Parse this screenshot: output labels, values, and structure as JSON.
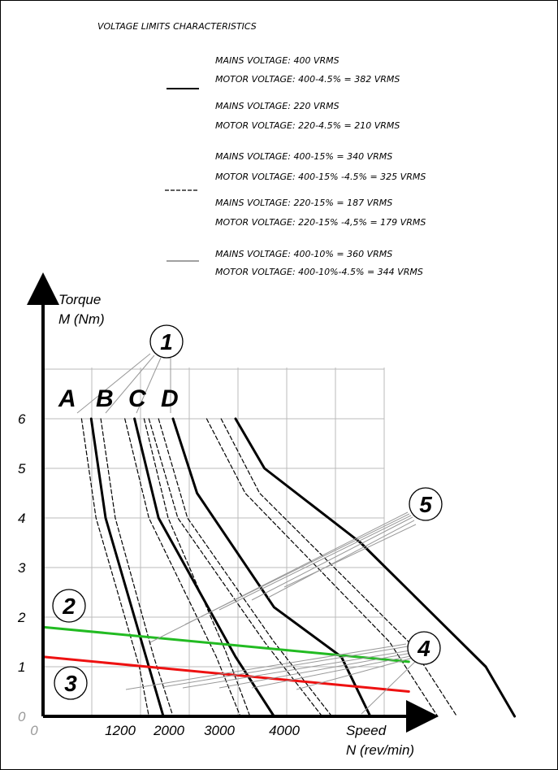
{
  "title": "VOLTAGE LIMITS CHARACTERISTICS",
  "legend": [
    {
      "lines": [
        "MAINS VOLTAGE: 400 VRMS",
        "MOTOR VOLTAGE: 400-4.5% = 382 VRMS"
      ],
      "style": "solid-thick"
    },
    {
      "lines": [
        "MAINS VOLTAGE: 220 VRMS",
        "MOTOR VOLTAGE: 220-4.5% = 210 VRMS"
      ],
      "style": "solid-thick"
    },
    {
      "lines": [
        "MAINS VOLTAGE: 400-15% = 340 VRMS",
        "MOTOR VOLTAGE: 400-15% -4.5% = 325 VRMS"
      ],
      "style": "dashed"
    },
    {
      "lines": [
        "MAINS VOLTAGE: 220-15% = 187 VRMS",
        "MOTOR VOLTAGE: 220-15% -4,5% = 179 VRMS"
      ],
      "style": "dashed"
    },
    {
      "lines": [
        "MAINS VOLTAGE: 400-10% = 360 VRMS",
        "MOTOR VOLTAGE: 400-10%-4.5% = 344 VRMS"
      ],
      "style": "solid-thin"
    }
  ],
  "chart_data": {
    "type": "line",
    "ylabel_line1": "Torque",
    "ylabel_line2": "M (Nm)",
    "xlabel_line1": "Speed",
    "xlabel_line2": "N (rev/min)",
    "y_ticks": [
      "0",
      "1",
      "2",
      "3",
      "4",
      "5",
      "6"
    ],
    "x_ticks": [
      "0",
      "1200",
      "2000",
      "3000",
      "4000"
    ],
    "ylim": [
      0,
      7
    ],
    "xlim": [
      0,
      5000
    ],
    "grid": true,
    "curve_labels": [
      "A",
      "B",
      "C",
      "D"
    ],
    "callouts": [
      "1",
      "2",
      "3",
      "4",
      "5"
    ],
    "colors": {
      "curve": "#000000",
      "line2": "#22bb22",
      "line3": "#ee1111",
      "grid": "#bbbbbb"
    },
    "series": [
      {
        "label": "A",
        "style": "solid",
        "points": [
          [
            500,
            6
          ],
          [
            650,
            4
          ],
          [
            1100,
            1
          ],
          [
            1250,
            0
          ]
        ]
      },
      {
        "label": "A",
        "style": "dashed",
        "points": [
          [
            400,
            6
          ],
          [
            550,
            4
          ],
          [
            1000,
            1
          ],
          [
            1100,
            0
          ]
        ]
      },
      {
        "label": "A",
        "style": "dashed",
        "points": [
          [
            600,
            6
          ],
          [
            750,
            4
          ],
          [
            1150,
            1.2
          ],
          [
            1350,
            0
          ]
        ]
      },
      {
        "label": "B",
        "style": "solid",
        "points": [
          [
            950,
            6
          ],
          [
            1200,
            4
          ],
          [
            2000,
            1.2
          ],
          [
            2400,
            0
          ]
        ]
      },
      {
        "label": "B",
        "style": "dashed",
        "points": [
          [
            850,
            6
          ],
          [
            1100,
            4
          ],
          [
            1800,
            1.2
          ],
          [
            2050,
            0
          ]
        ]
      },
      {
        "label": "B",
        "style": "dashed",
        "points": [
          [
            1050,
            6
          ],
          [
            1300,
            4
          ],
          [
            1900,
            1.3
          ],
          [
            2150,
            0
          ]
        ]
      },
      {
        "label": "C",
        "style": "solid",
        "points": [
          [
            1350,
            6
          ],
          [
            1600,
            4.5
          ],
          [
            2400,
            2.2
          ],
          [
            3100,
            1.2
          ],
          [
            3400,
            0
          ]
        ]
      },
      {
        "label": "C",
        "style": "dashed",
        "points": [
          [
            1100,
            6
          ],
          [
            1400,
            4
          ],
          [
            2300,
            1.5
          ],
          [
            2900,
            0
          ]
        ]
      },
      {
        "label": "C",
        "style": "dashed",
        "points": [
          [
            1200,
            6
          ],
          [
            1500,
            4
          ],
          [
            2400,
            1.5
          ],
          [
            3000,
            0
          ]
        ]
      },
      {
        "label": "D",
        "style": "solid",
        "points": [
          [
            2000,
            6
          ],
          [
            2300,
            5
          ],
          [
            3300,
            3.5
          ],
          [
            4600,
            1
          ],
          [
            4900,
            0
          ]
        ]
      },
      {
        "label": "D",
        "style": "dashed",
        "points": [
          [
            1700,
            6
          ],
          [
            2100,
            4.5
          ],
          [
            3600,
            1.5
          ],
          [
            4100,
            0
          ]
        ]
      },
      {
        "label": "D",
        "style": "dashed",
        "points": [
          [
            1850,
            6
          ],
          [
            2250,
            4.5
          ],
          [
            3800,
            1.5
          ],
          [
            4300,
            0
          ]
        ]
      },
      {
        "label": "2",
        "style": "green",
        "points": [
          [
            0,
            1.8
          ],
          [
            3800,
            1.1
          ]
        ]
      },
      {
        "label": "3",
        "style": "red",
        "points": [
          [
            0,
            1.2
          ],
          [
            3800,
            0.5
          ]
        ]
      }
    ]
  }
}
